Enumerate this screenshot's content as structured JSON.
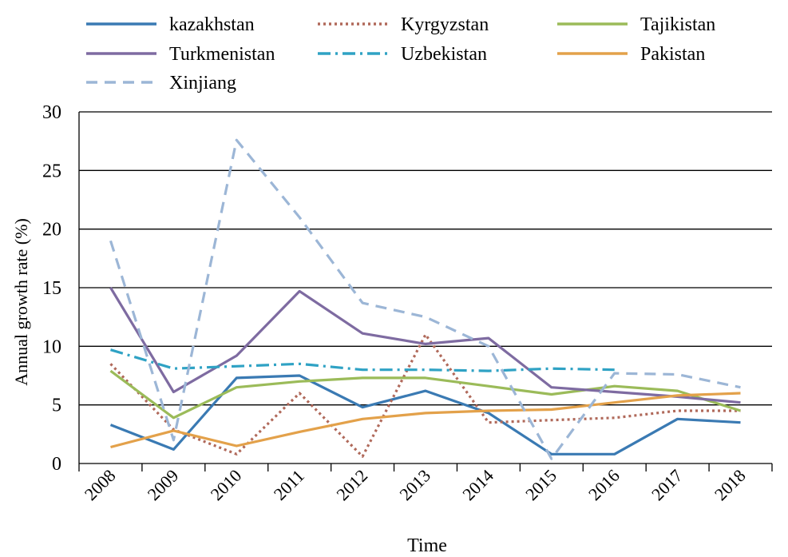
{
  "chart_data": {
    "type": "line",
    "xlabel": "Time",
    "ylabel": "Annual growth  rate (%)",
    "ylim": [
      0,
      30
    ],
    "yticks": [
      0,
      5,
      10,
      15,
      20,
      25,
      30
    ],
    "x": [
      "2008",
      "2009",
      "2010",
      "2011",
      "2012",
      "2013",
      "2014",
      "2015",
      "2016",
      "2017",
      "2018"
    ],
    "grid": "horizontal",
    "legend_position": "top",
    "series": [
      {
        "name": "kazakhstan",
        "color": "#3a7ab3",
        "dash": "solid",
        "values": [
          3.3,
          1.2,
          7.3,
          7.5,
          4.8,
          6.2,
          4.3,
          0.8,
          0.8,
          3.8,
          3.5
        ]
      },
      {
        "name": "Kyrgyzstan",
        "color": "#b0695a",
        "dash": "dotted",
        "values": [
          8.5,
          2.9,
          0.8,
          6.0,
          0.6,
          11.0,
          3.5,
          3.7,
          3.9,
          4.5,
          4.5
        ]
      },
      {
        "name": "Tajikistan",
        "color": "#9bbb59",
        "dash": "solid",
        "values": [
          7.9,
          3.9,
          6.5,
          7.0,
          7.3,
          7.3,
          6.6,
          5.9,
          6.6,
          6.2,
          4.5
        ]
      },
      {
        "name": "Turkmenistan",
        "color": "#7e6ba1",
        "dash": "solid",
        "values": [
          15.0,
          6.1,
          9.2,
          14.7,
          11.1,
          10.2,
          10.7,
          6.5,
          6.1,
          5.7,
          5.2
        ]
      },
      {
        "name": "Uzbekistan",
        "color": "#2fa2c4",
        "dash": "dashdot",
        "values": [
          9.7,
          8.1,
          8.3,
          8.5,
          8.0,
          8.0,
          7.9,
          8.1,
          8.0,
          null,
          null
        ]
      },
      {
        "name": "Pakistan",
        "color": "#e3a14a",
        "dash": "solid",
        "values": [
          1.4,
          2.8,
          1.5,
          2.7,
          3.8,
          4.3,
          4.5,
          4.6,
          5.2,
          5.8,
          6.0
        ]
      },
      {
        "name": "Xinjiang",
        "color": "#9cb6d6",
        "dash": "dashed",
        "values": [
          19.0,
          2.0,
          27.6,
          21.0,
          13.7,
          12.5,
          10.0,
          0.4,
          7.7,
          7.6,
          6.5
        ]
      }
    ]
  }
}
